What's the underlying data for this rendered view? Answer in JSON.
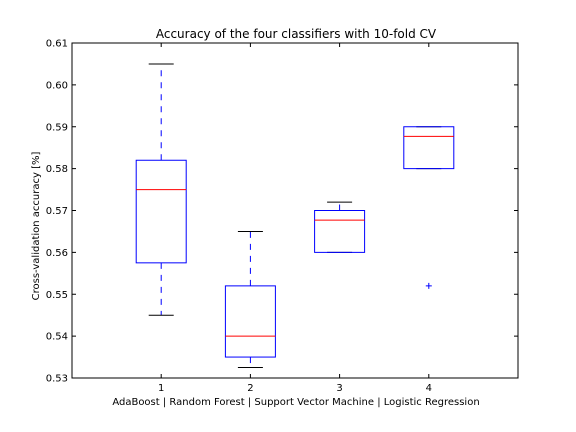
{
  "chart_data": {
    "type": "box",
    "title": "Accuracy of the four classifiers with 10-fold CV",
    "xlabel": "AdaBoost | Random Forest | Support Vector Machine | Logistic Regression",
    "ylabel": "Cross-validation accuracy [%]",
    "ylim": [
      0.53,
      0.61
    ],
    "yticks": [
      "0.53",
      "0.54",
      "0.55",
      "0.56",
      "0.57",
      "0.58",
      "0.59",
      "0.60",
      "0.61"
    ],
    "categories": [
      "1",
      "2",
      "3",
      "4"
    ],
    "boxes": [
      {
        "whisker_low": 0.545,
        "q1": 0.5575,
        "median": 0.575,
        "q3": 0.582,
        "whisker_high": 0.605,
        "outliers": []
      },
      {
        "whisker_low": 0.5325,
        "q1": 0.535,
        "median": 0.54,
        "q3": 0.552,
        "whisker_high": 0.565,
        "outliers": []
      },
      {
        "whisker_low": 0.56,
        "q1": 0.56,
        "median": 0.5677,
        "q3": 0.57,
        "whisker_high": 0.572,
        "outliers": []
      },
      {
        "whisker_low": 0.58,
        "q1": 0.58,
        "median": 0.5877,
        "q3": 0.59,
        "whisker_high": 0.59,
        "outliers": [
          0.552
        ]
      }
    ],
    "colors": {
      "box": "#0000ff",
      "median": "#ff0000",
      "whisker": "#0000ff",
      "cap": "#000000",
      "outlier": "#0000ff"
    },
    "grid": false
  }
}
